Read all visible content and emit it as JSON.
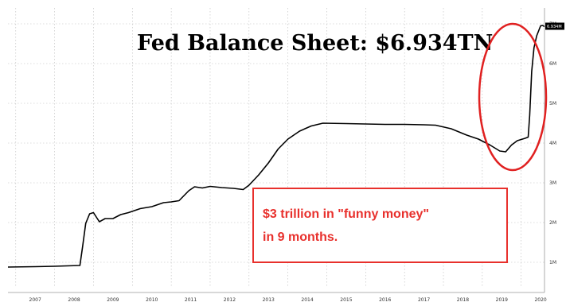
{
  "chart_data": {
    "type": "line",
    "title": "Fed Balance Sheet: $6.934TN",
    "xlabel": "",
    "ylabel": "",
    "x_ticks": [
      "2007",
      "2008",
      "2009",
      "2010",
      "2011",
      "2012",
      "2013",
      "2014",
      "2015",
      "2016",
      "2017",
      "2018",
      "2019",
      "2020"
    ],
    "y_ticks": [
      1,
      2,
      3,
      4,
      5,
      6,
      7
    ],
    "y_tick_labels": [
      "1M",
      "2M",
      "3M",
      "4M",
      "5M",
      "6M",
      "7M"
    ],
    "xlim": [
      2006.8,
      2020.6
    ],
    "ylim": [
      0.4,
      7.4
    ],
    "last_value_label": "6.934M",
    "grid": true,
    "series": [
      {
        "color": "#000000",
        "x": [
          2006.8,
          2007.5,
          2008.0,
          2008.65,
          2008.72,
          2008.8,
          2008.9,
          2009.0,
          2009.15,
          2009.3,
          2009.5,
          2009.7,
          2009.9,
          2010.2,
          2010.5,
          2010.8,
          2011.0,
          2011.2,
          2011.45,
          2011.6,
          2011.8,
          2012.0,
          2012.3,
          2012.6,
          2012.85,
          2013.0,
          2013.25,
          2013.5,
          2013.75,
          2014.0,
          2014.3,
          2014.6,
          2014.9,
          2015.5,
          2016.0,
          2016.5,
          2017.0,
          2017.5,
          2017.8,
          2018.2,
          2018.6,
          2018.9,
          2019.2,
          2019.45,
          2019.6,
          2019.75,
          2019.9,
          2020.1,
          2020.18,
          2020.22,
          2020.27,
          2020.33,
          2020.4,
          2020.5,
          2020.55,
          2020.6
        ],
        "y": [
          0.88,
          0.89,
          0.9,
          0.92,
          1.4,
          1.98,
          2.22,
          2.25,
          2.02,
          2.1,
          2.1,
          2.2,
          2.25,
          2.35,
          2.4,
          2.5,
          2.52,
          2.55,
          2.8,
          2.9,
          2.87,
          2.91,
          2.88,
          2.86,
          2.83,
          2.94,
          3.2,
          3.5,
          3.85,
          4.1,
          4.3,
          4.43,
          4.5,
          4.49,
          4.48,
          4.47,
          4.47,
          4.46,
          4.45,
          4.36,
          4.2,
          4.1,
          3.95,
          3.8,
          3.78,
          3.95,
          4.06,
          4.12,
          4.15,
          4.7,
          5.8,
          6.4,
          6.7,
          6.95,
          6.96,
          6.93
        ]
      }
    ],
    "annotations": [
      {
        "text_line1": "$3 trillion in \"funny money\"",
        "text_line2": "in 9 months.",
        "color": "#e8302c"
      }
    ],
    "highlight_color": "#e02020"
  }
}
